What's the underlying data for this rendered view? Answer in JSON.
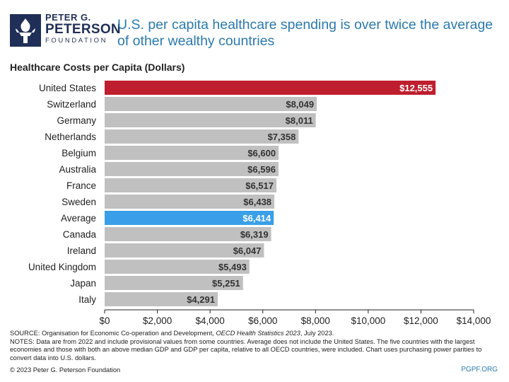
{
  "header": {
    "logo_line1": "PETER G.",
    "logo_line2": "PETERSON",
    "logo_line3": "FOUNDATION",
    "title": "U.S. per capita healthcare spending is over twice the average of other wealthy countries"
  },
  "colors": {
    "highlight": "#bf1e2e",
    "average": "#3a9fe8",
    "default": "#c0c0c0",
    "title": "#2a7ab0",
    "logo": "#1f2f57"
  },
  "chart_data": {
    "type": "bar",
    "orientation": "horizontal",
    "title": "Healthcare Costs per Capita (Dollars)",
    "categories": [
      "United States",
      "Switzerland",
      "Germany",
      "Netherlands",
      "Belgium",
      "Australia",
      "France",
      "Sweden",
      "Average",
      "Canada",
      "Ireland",
      "United Kingdom",
      "Japan",
      "Italy"
    ],
    "values": [
      12555,
      8049,
      8011,
      7358,
      6600,
      6596,
      6517,
      6438,
      6414,
      6319,
      6047,
      5493,
      5251,
      4291
    ],
    "data_labels": [
      "$12,555",
      "$8,049",
      "$8,011",
      "$7,358",
      "$6,600",
      "$6,596",
      "$6,517",
      "$6,438",
      "$6,414",
      "$6,319",
      "$6,047",
      "$5,493",
      "$5,251",
      "$4,291"
    ],
    "bar_colors": [
      "highlight",
      "default",
      "default",
      "default",
      "default",
      "default",
      "default",
      "default",
      "average",
      "default",
      "default",
      "default",
      "default",
      "default"
    ],
    "xlim": [
      0,
      14000
    ],
    "ticks": [
      0,
      2000,
      4000,
      6000,
      8000,
      10000,
      12000,
      14000
    ],
    "tick_labels": [
      "$0",
      "$2,000",
      "$4,000",
      "$6,000",
      "$8,000",
      "$10,000",
      "$12,000",
      "$14,000"
    ],
    "grid": false,
    "legend": "none"
  },
  "footer": {
    "source_prefix": "SOURCE: Organisation for Economic Co-operation and Development, ",
    "source_italic": "OECD Health Statistics 2023",
    "source_suffix": ", July 2023.",
    "notes": "NOTES: Data are from 2022 and include provisional values from some countries. Average does not include the United States. The five countries with the largest economies and those with both an above median GDP and GDP per capita, relative to all OECD countries, were included. Chart uses purchasing power parities to convert data into U.S. dollars.",
    "copyright": "© 2023 Peter G. Peterson Foundation",
    "site": "PGPF.ORG"
  }
}
